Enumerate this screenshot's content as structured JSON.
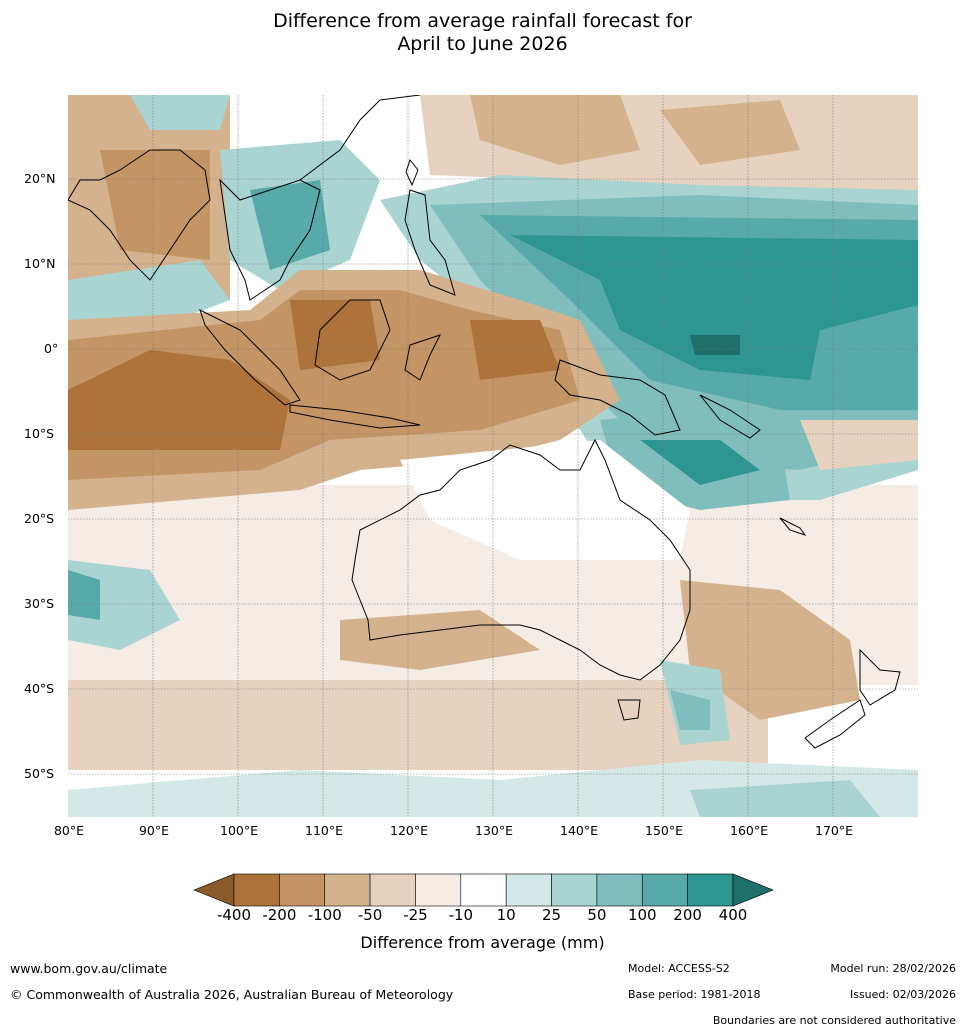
{
  "title": {
    "line1": "Difference from average rainfall forecast for",
    "line2": "April to June 2026"
  },
  "map": {
    "lat_labels": [
      "20°N",
      "10°N",
      "0°",
      "10°S",
      "20°S",
      "30°S",
      "40°S",
      "50°S"
    ],
    "lon_labels": [
      "80°E",
      "90°E",
      "100°E",
      "110°E",
      "120°E",
      "130°E",
      "140°E",
      "150°E",
      "160°E",
      "170°E"
    ]
  },
  "legend": {
    "title": "Difference from average (mm)",
    "ticks": [
      "-400",
      "-200",
      "-100",
      "-50",
      "-25",
      "-10",
      "10",
      "25",
      "50",
      "100",
      "200",
      "400"
    ],
    "colors": [
      "#8a5a2b",
      "#ad733a",
      "#c39464",
      "#d5b28e",
      "#e7d2bf",
      "#f5ece6",
      "#ffffff",
      "#d4e9e7",
      "#a9d4d2",
      "#7fbebd",
      "#57aaa9",
      "#2d9692",
      "#1f6f6c"
    ]
  },
  "footer": {
    "url": "www.bom.gov.au/climate",
    "copyright": "© Commonwealth of Australia 2026, Australian Bureau of Meteorology",
    "model": "Model: ACCESS-S2",
    "base_period": "Base period: 1981-2018",
    "model_run": "Model run: 28/02/2026",
    "issued": "Issued: 02/03/2026",
    "disclaimer": "Boundaries are not considered authoritative"
  }
}
